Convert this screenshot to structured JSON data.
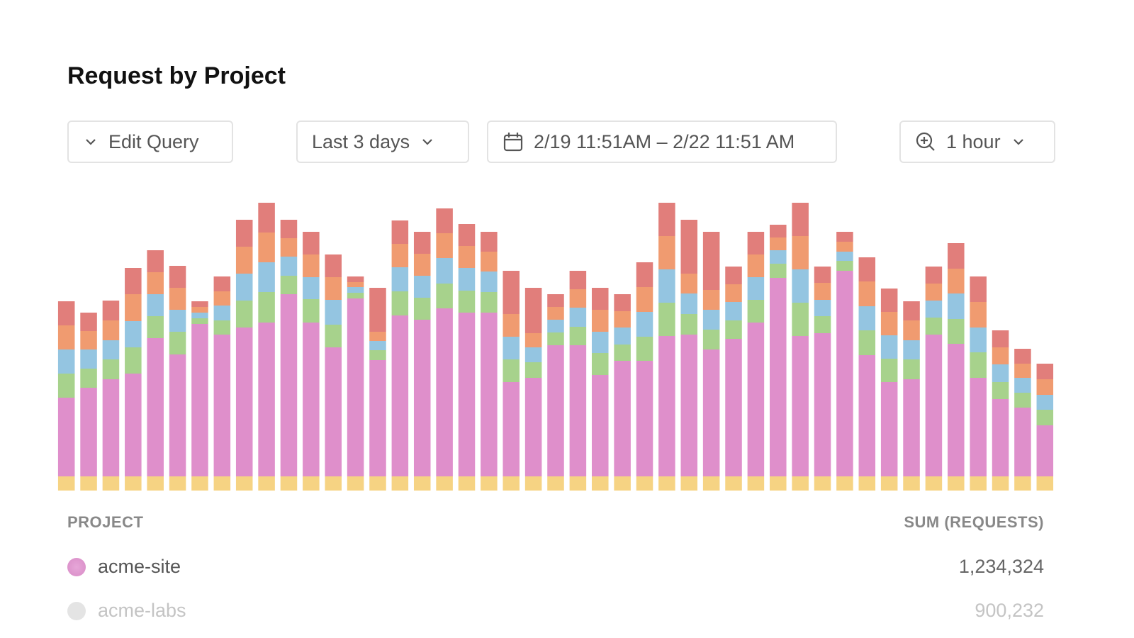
{
  "chart_data": {
    "type": "bar",
    "stacked": true,
    "title": "Request by Project",
    "categories": [
      null,
      null,
      null,
      null,
      null,
      null,
      null,
      null,
      null,
      null,
      null,
      null,
      null,
      null,
      null,
      null,
      null,
      null,
      null,
      null,
      null,
      null,
      null,
      null,
      null,
      null,
      null,
      null,
      null,
      null,
      null,
      null,
      null,
      null,
      null,
      null,
      null,
      null,
      null,
      null,
      null,
      null,
      null,
      null,
      null
    ],
    "ylim": [
      0,
      420
    ],
    "series": [
      {
        "color": "#f6d383",
        "values": [
          20,
          20,
          20,
          20,
          20,
          20,
          20,
          20,
          20,
          20,
          20,
          20,
          20,
          20,
          20,
          20,
          20,
          20,
          20,
          20,
          20,
          20,
          20,
          20,
          20,
          20,
          20,
          20,
          20,
          20,
          20,
          20,
          20,
          20,
          20,
          20,
          20,
          20,
          20,
          20,
          20,
          20,
          20,
          20,
          20
        ]
      },
      {
        "color": "#df8fcb",
        "values": [
          111,
          125,
          137,
          145,
          195,
          172,
          215,
          200,
          210,
          217,
          257,
          217,
          182,
          251,
          164,
          227,
          221,
          237,
          231,
          231,
          133,
          139,
          185,
          185,
          143,
          163,
          163,
          198,
          200,
          179,
          194,
          217,
          280,
          198,
          202,
          290,
          171,
          133,
          137,
          200,
          187,
          139,
          109,
          97,
          72
        ]
      },
      {
        "color": "#a7d28c",
        "values": [
          34,
          27,
          28,
          37,
          31,
          32,
          8,
          20,
          38,
          43,
          26,
          33,
          32,
          8,
          14,
          34,
          31,
          35,
          31,
          29,
          32,
          22,
          18,
          26,
          31,
          23,
          34,
          47,
          29,
          28,
          26,
          32,
          20,
          47,
          24,
          14,
          35,
          33,
          28,
          24,
          35,
          36,
          24,
          21,
          22
        ]
      },
      {
        "color": "#94c5e1",
        "values": [
          34,
          27,
          27,
          37,
          31,
          31,
          8,
          21,
          38,
          42,
          27,
          31,
          35,
          8,
          13,
          34,
          31,
          36,
          32,
          29,
          32,
          21,
          18,
          27,
          30,
          24,
          35,
          47,
          29,
          28,
          26,
          32,
          19,
          47,
          23,
          13,
          34,
          33,
          27,
          24,
          36,
          35,
          25,
          21,
          21
        ]
      },
      {
        "color": "#f09b70",
        "values": [
          34,
          26,
          28,
          38,
          31,
          31,
          8,
          20,
          38,
          42,
          26,
          32,
          32,
          7,
          13,
          33,
          31,
          35,
          31,
          28,
          32,
          20,
          18,
          26,
          31,
          23,
          35,
          47,
          28,
          28,
          25,
          32,
          18,
          47,
          24,
          14,
          35,
          33,
          28,
          24,
          35,
          36,
          24,
          20,
          22
        ]
      },
      {
        "color": "#e17e7b",
        "values": [
          34,
          26,
          28,
          37,
          31,
          31,
          8,
          21,
          38,
          42,
          26,
          32,
          32,
          8,
          62,
          33,
          31,
          35,
          31,
          28,
          61,
          64,
          18,
          26,
          31,
          24,
          35,
          47,
          76,
          82,
          25,
          32,
          18,
          47,
          23,
          14,
          34,
          33,
          27,
          24,
          36,
          36,
          24,
          21,
          22
        ]
      }
    ]
  },
  "controls": {
    "edit_query": "Edit Query",
    "range": "Last 3 days",
    "dates": "2/19 11:51AM – 2/22 11:51 AM",
    "interval": "1 hour"
  },
  "table": {
    "headers": [
      "PROJECT",
      "SUM (REQUESTS)"
    ],
    "rows": [
      [
        "acme-site",
        "1,234,324"
      ],
      [
        "acme-labs",
        "900,232"
      ]
    ]
  }
}
